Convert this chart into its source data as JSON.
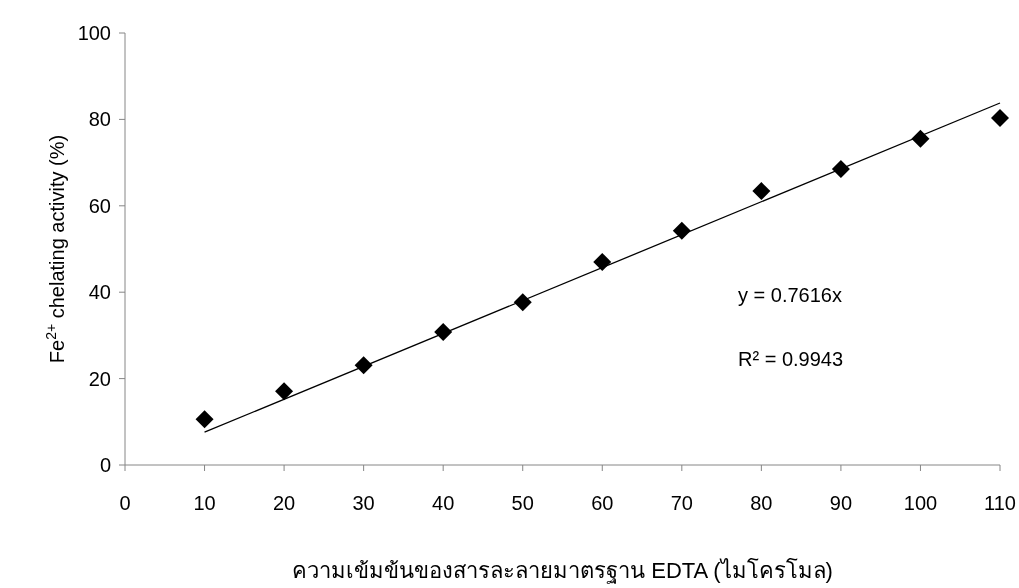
{
  "chart_data": {
    "type": "scatter",
    "xlabel": "ความเข้มข้นของสารละลายมาตรฐาน EDTA (ไมโครโมล)",
    "ylabel": "Fe$^{2+}$ chelating activity (%)",
    "xlim": [
      0,
      110
    ],
    "xticks": [
      0,
      10,
      20,
      30,
      40,
      50,
      60,
      70,
      80,
      90,
      100,
      110
    ],
    "ylim": [
      0,
      100
    ],
    "yticks": [
      0,
      20,
      40,
      60,
      80,
      100
    ],
    "grid": false,
    "series": [
      {
        "marker": "diamond",
        "color": "#000000",
        "x": [
          10,
          20,
          30,
          40,
          50,
          60,
          70,
          80,
          90,
          100,
          110
        ],
        "values": [
          10.6,
          17.1,
          23.1,
          30.8,
          37.7,
          47.0,
          54.2,
          63.4,
          68.5,
          75.5,
          80.3
        ]
      },
      {
        "type": "line",
        "marker": "none",
        "line_style": "solid",
        "color": "#000000",
        "x": [
          10,
          110
        ],
        "values": [
          7.6,
          83.8
        ]
      }
    ],
    "annotations": [
      "y = 0.7616x",
      "R² = 0.9943"
    ]
  }
}
